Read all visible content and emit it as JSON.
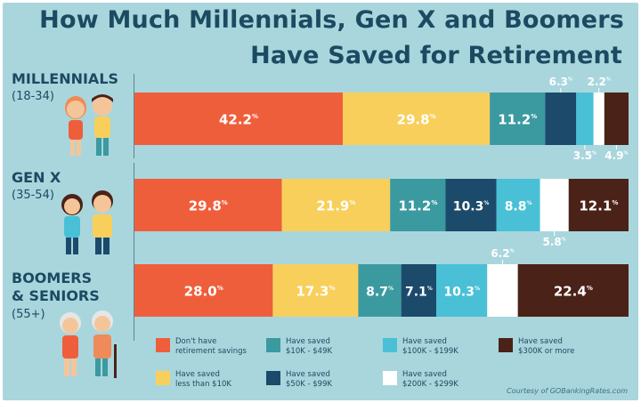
{
  "title_line1": "How Much Millennials, Gen X and Boomers",
  "title_line2": "Have Saved for Retirement",
  "groups": [
    {
      "name_lines": [
        "MILLENNIALS"
      ],
      "age": "(18-34)"
    },
    {
      "name_lines": [
        "GEN X"
      ],
      "age": "(35-54)"
    },
    {
      "name_lines": [
        "BOOMERS",
        "& SENIORS"
      ],
      "age": "(55+)"
    }
  ],
  "legend": [
    {
      "lines": [
        "Don't have",
        "retirement savings"
      ],
      "color": "#ef5e3a"
    },
    {
      "lines": [
        "Have saved",
        "less than $10K"
      ],
      "color": "#f8cf5b"
    },
    {
      "lines": [
        "Have saved",
        "$10K - $49K"
      ],
      "color": "#3b9aa0"
    },
    {
      "lines": [
        "Have saved",
        "$50K - $99K"
      ],
      "color": "#1c4a6b"
    },
    {
      "lines": [
        "Have saved",
        "$100K - $199K"
      ],
      "color": "#49c0d6"
    },
    {
      "lines": [
        "Have saved",
        "$200K - $299K"
      ],
      "color": "#ffffff"
    },
    {
      "lines": [
        "Have saved",
        "$300K or more"
      ],
      "color": "#4b2218"
    }
  ],
  "credit": "Courtesy of GOBankingRates.com",
  "chart_data": {
    "type": "bar",
    "stacked": true,
    "orientation": "horizontal",
    "title": "How Much Millennials, Gen X and Boomers Have Saved for Retirement",
    "categories": [
      "MILLENNIALS (18-34)",
      "GEN X (35-54)",
      "BOOMERS & SENIORS (55+)"
    ],
    "unit": "%",
    "xlim": [
      0,
      100
    ],
    "series": [
      {
        "name": "Don't have retirement savings",
        "values": [
          42.2,
          29.8,
          28.0
        ]
      },
      {
        "name": "Have saved less than $10K",
        "values": [
          29.8,
          21.9,
          17.3
        ]
      },
      {
        "name": "Have saved $10K - $49K",
        "values": [
          11.2,
          11.2,
          8.7
        ]
      },
      {
        "name": "Have saved $50K - $99K",
        "values": [
          6.3,
          10.3,
          7.1
        ]
      },
      {
        "name": "Have saved $100K - $199K",
        "values": [
          3.5,
          8.8,
          10.3
        ]
      },
      {
        "name": "Have saved $200K - $299K",
        "values": [
          2.2,
          5.8,
          6.2
        ]
      },
      {
        "name": "Have saved $300K or more",
        "values": [
          4.9,
          12.1,
          22.4
        ]
      }
    ],
    "labels": [
      [
        "42.2",
        "29.8",
        "11.2",
        "6.3",
        "3.5",
        "2.2",
        "4.9"
      ],
      [
        "29.8",
        "21.9",
        "11.2",
        "10.3",
        "8.8",
        "5.8",
        "12.1"
      ],
      [
        "28.0",
        "17.3",
        "8.7",
        "7.1",
        "10.3",
        "6.2",
        "22.4"
      ]
    ],
    "legend_position": "bottom",
    "grid": false
  }
}
